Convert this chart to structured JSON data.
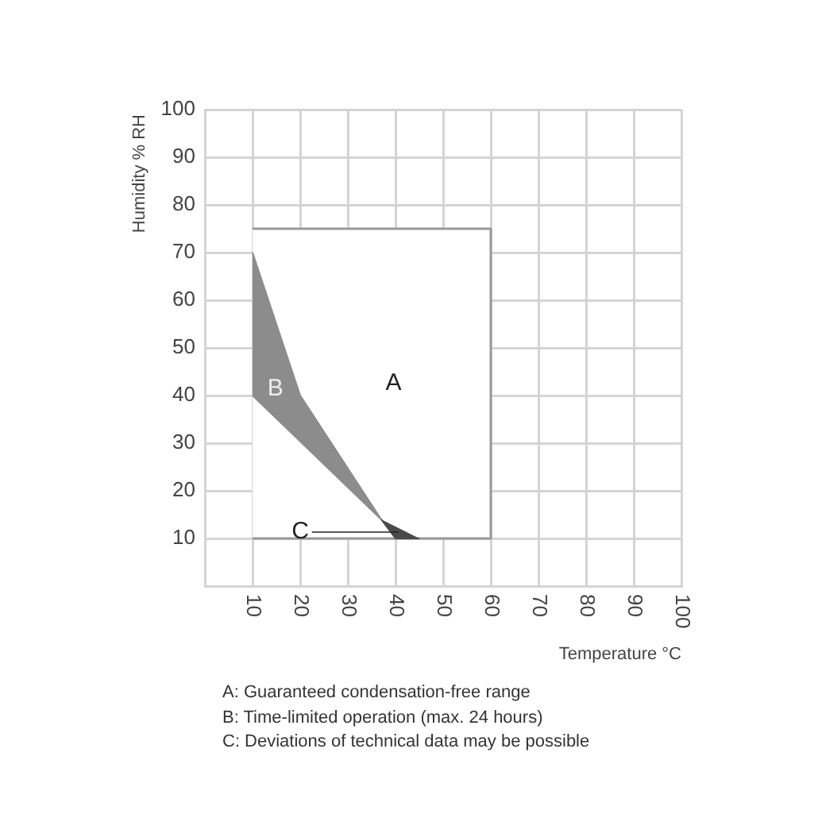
{
  "chart_data": {
    "type": "area",
    "xlabel": "Temperature °C",
    "ylabel": "Humidity % RH",
    "xlim": [
      0,
      100
    ],
    "ylim": [
      0,
      100
    ],
    "xticks": [
      10,
      20,
      30,
      40,
      50,
      60,
      70,
      80,
      90,
      100
    ],
    "yticks": [
      10,
      20,
      30,
      40,
      50,
      60,
      70,
      80,
      90,
      100
    ],
    "grid": true,
    "legend": false,
    "series": [
      {
        "name": "A",
        "color": "#ffffff",
        "x": [
          10,
          60,
          60,
          10
        ],
        "values": [
          75,
          75,
          10,
          10
        ]
      },
      {
        "name": "B",
        "color": "#8c8c8c",
        "x": [
          10,
          20,
          37,
          10
        ],
        "values": [
          70,
          40,
          14,
          40
        ]
      },
      {
        "name": "C",
        "color": "#4a4a4a",
        "x": [
          37,
          40,
          45
        ],
        "values": [
          14,
          10,
          10
        ]
      }
    ],
    "annotations": [
      "A: Guaranteed condensation-free range",
      "B: Time-limited operation (max. 24 hours)",
      "C: Deviations of technical data may be possible"
    ]
  }
}
